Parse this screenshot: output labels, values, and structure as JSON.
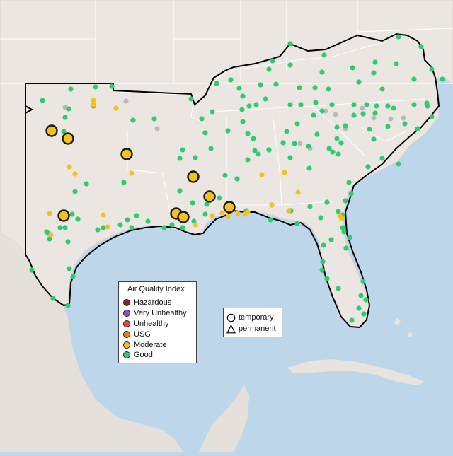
{
  "colors": {
    "water": "#bdd6ea",
    "land": "#ebe6e2",
    "border": "#ffffff",
    "highlight_outline": "#000000"
  },
  "aqi_legend": {
    "title": "Air Quality Index",
    "categories": [
      {
        "key": "hazardous",
        "label": "Hazardous",
        "color": "#7e2a2a"
      },
      {
        "key": "very_unhealthy",
        "label": "Very Unhealthy",
        "color": "#8f4fbf"
      },
      {
        "key": "unhealthy",
        "label": "Unhealthy",
        "color": "#e8463a"
      },
      {
        "key": "usg",
        "label": "USG",
        "color": "#e8821e"
      },
      {
        "key": "moderate",
        "label": "Moderate",
        "color": "#f4c21b"
      },
      {
        "key": "good",
        "label": "Good",
        "color": "#2ecc71"
      }
    ]
  },
  "monitor_legend": {
    "temporary_label": "temporary",
    "permanent_label": "permanent"
  },
  "stations": {
    "good": [
      [
        410,
        62
      ],
      [
        458,
        78
      ],
      [
        563,
        52
      ],
      [
        595,
        66
      ],
      [
        385,
        86
      ],
      [
        380,
        98
      ],
      [
        410,
        92
      ],
      [
        455,
        102
      ],
      [
        498,
        96
      ],
      [
        530,
        88
      ],
      [
        560,
        90
      ],
      [
        610,
        98
      ],
      [
        625,
        112
      ],
      [
        306,
        118
      ],
      [
        326,
        113
      ],
      [
        338,
        125
      ],
      [
        343,
        136
      ],
      [
        368,
        120
      ],
      [
        390,
        119
      ],
      [
        423,
        124
      ],
      [
        445,
        124
      ],
      [
        464,
        126
      ],
      [
        507,
        116
      ],
      [
        528,
        103
      ],
      [
        540,
        126
      ],
      [
        585,
        112
      ],
      [
        603,
        146
      ],
      [
        585,
        148
      ],
      [
        518,
        148
      ],
      [
        500,
        148
      ],
      [
        532,
        150
      ],
      [
        548,
        150
      ],
      [
        556,
        153
      ],
      [
        469,
        148
      ],
      [
        446,
        145
      ],
      [
        425,
        148
      ],
      [
        410,
        148
      ],
      [
        375,
        140
      ],
      [
        362,
        148
      ],
      [
        352,
        150
      ],
      [
        342,
        155
      ],
      [
        300,
        158
      ],
      [
        270,
        140
      ],
      [
        285,
        168
      ],
      [
        290,
        188
      ],
      [
        298,
        210
      ],
      [
        350,
        189
      ],
      [
        322,
        185
      ],
      [
        343,
        172
      ],
      [
        358,
        196
      ],
      [
        360,
        213
      ],
      [
        350,
        226
      ],
      [
        365,
        218
      ],
      [
        380,
        212
      ],
      [
        400,
        202
      ],
      [
        405,
        186
      ],
      [
        420,
        175
      ],
      [
        443,
        163
      ],
      [
        455,
        157
      ],
      [
        476,
        180
      ],
      [
        476,
        196
      ],
      [
        488,
        178
      ],
      [
        522,
        183
      ],
      [
        500,
        163
      ],
      [
        513,
        161
      ],
      [
        530,
        160
      ],
      [
        548,
        179
      ],
      [
        572,
        175
      ],
      [
        610,
        165
      ],
      [
        604,
        150
      ],
      [
        590,
        182
      ],
      [
        528,
        197
      ],
      [
        482,
        202
      ],
      [
        465,
        210
      ],
      [
        448,
        190
      ],
      [
        436,
        207
      ],
      [
        416,
        203
      ],
      [
        410,
        223
      ],
      [
        437,
        238
      ],
      [
        470,
        215
      ],
      [
        478,
        218
      ],
      [
        520,
        236
      ],
      [
        540,
        224
      ],
      [
        563,
        232
      ],
      [
        493,
        258
      ],
      [
        496,
        274
      ],
      [
        488,
        284
      ],
      [
        462,
        286
      ],
      [
        438,
        292
      ],
      [
        411,
        298
      ],
      [
        384,
        290
      ],
      [
        348,
        298
      ],
      [
        382,
        311
      ],
      [
        420,
        316
      ],
      [
        478,
        299
      ],
      [
        483,
        309
      ],
      [
        453,
        308
      ],
      [
        484,
        322
      ],
      [
        494,
        336
      ],
      [
        468,
        339
      ],
      [
        457,
        347
      ],
      [
        489,
        351
      ],
      [
        456,
        370
      ],
      [
        455,
        382
      ],
      [
        462,
        394
      ],
      [
        478,
        408
      ],
      [
        513,
        398
      ],
      [
        510,
        418
      ],
      [
        507,
        436
      ],
      [
        514,
        444
      ],
      [
        517,
        424
      ],
      [
        497,
        453
      ],
      [
        175,
        258
      ],
      [
        122,
        260
      ],
      [
        106,
        271
      ],
      [
        102,
        303
      ],
      [
        92,
        322
      ],
      [
        66,
        328
      ],
      [
        70,
        338
      ],
      [
        85,
        322
      ],
      [
        60,
        142
      ],
      [
        97,
        154
      ],
      [
        92,
        166
      ],
      [
        90,
        186
      ],
      [
        100,
        126
      ],
      [
        135,
        123
      ],
      [
        158,
        122
      ],
      [
        132,
        150
      ],
      [
        188,
        170
      ],
      [
        218,
        168
      ],
      [
        258,
        212
      ],
      [
        254,
        224
      ],
      [
        276,
        223
      ],
      [
        318,
        248
      ],
      [
        335,
        253
      ],
      [
        310,
        280
      ],
      [
        254,
        270
      ],
      [
        272,
        287
      ],
      [
        292,
        289
      ],
      [
        290,
        303
      ],
      [
        274,
        313
      ],
      [
        258,
        322
      ],
      [
        243,
        318
      ],
      [
        232,
        322
      ],
      [
        209,
        313
      ],
      [
        193,
        305
      ],
      [
        180,
        311
      ],
      [
        186,
        322
      ],
      [
        170,
        318
      ],
      [
        146,
        322
      ],
      [
        138,
        325
      ],
      [
        110,
        310
      ],
      [
        45,
        382
      ],
      [
        75,
        422
      ],
      [
        96,
        432
      ],
      [
        98,
        380
      ],
      [
        103,
        391
      ],
      [
        96,
        342
      ],
      [
        68,
        330
      ],
      [
        484,
        304
      ],
      [
        486,
        328
      ]
    ],
    "moderate": [
      [
        132,
        142
      ],
      [
        132,
        148
      ],
      [
        164,
        153
      ],
      [
        98,
        236
      ],
      [
        106,
        246
      ],
      [
        186,
        245
      ],
      [
        370,
        247
      ],
      [
        402,
        244
      ],
      [
        421,
        272
      ],
      [
        146,
        304
      ],
      [
        152,
        321
      ],
      [
        314,
        301
      ],
      [
        300,
        305
      ],
      [
        322,
        306
      ],
      [
        336,
        302
      ],
      [
        346,
        303
      ],
      [
        350,
        300
      ],
      [
        276,
        318
      ],
      [
        70,
        302
      ],
      [
        72,
        332
      ],
      [
        384,
        290
      ],
      [
        408,
        298
      ],
      [
        480,
        305
      ],
      [
        483,
        309
      ]
    ],
    "nodata": [
      [
        178,
        143
      ],
      [
        222,
        182
      ],
      [
        460,
        157
      ],
      [
        474,
        162
      ],
      [
        512,
        153
      ],
      [
        528,
        167
      ],
      [
        552,
        168
      ],
      [
        570,
        167
      ],
      [
        424,
        203
      ],
      [
        438,
        210
      ],
      [
        92,
        152
      ],
      [
        488,
        182
      ]
    ],
    "moderate_large": [
      [
        73,
        185
      ],
      [
        96,
        196
      ],
      [
        179,
        218
      ],
      [
        273,
        250
      ],
      [
        296,
        278
      ],
      [
        90,
        305
      ],
      [
        249,
        302
      ],
      [
        259,
        307
      ],
      [
        324,
        293
      ]
    ]
  }
}
